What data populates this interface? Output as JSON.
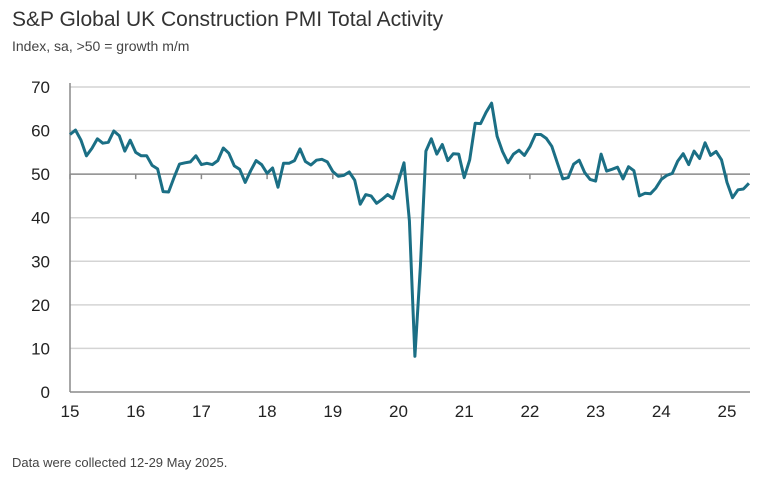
{
  "chart_data": {
    "type": "line",
    "title": "S&P Global UK Construction PMI Total Activity",
    "subtitle": "Index, sa, >50 = growth m/m",
    "footnote": "Data were collected 12-29 May 2025.",
    "xlabel": "",
    "ylabel": "",
    "ylim": [
      0,
      70
    ],
    "yticks": [
      0,
      10,
      20,
      30,
      40,
      50,
      60,
      70
    ],
    "xticks": [
      "15",
      "16",
      "17",
      "18",
      "19",
      "20",
      "21",
      "22",
      "23",
      "24",
      "25"
    ],
    "x_start": "2015-01",
    "x_frequency": "monthly",
    "grid": true,
    "reference_line": 50,
    "line_color": "#1b6f85",
    "series": [
      {
        "values": [
          59.1,
          60.1,
          57.8,
          54.2,
          55.9,
          58.1,
          57.1,
          57.3,
          59.9,
          58.8,
          55.3,
          57.8,
          55.0,
          54.2,
          54.2,
          52.0,
          51.2,
          46.0,
          45.9,
          49.2,
          52.3,
          52.6,
          52.8,
          54.2,
          52.2,
          52.5,
          52.2,
          53.1,
          56.0,
          54.8,
          51.9,
          51.1,
          48.1,
          50.8,
          53.1,
          52.2,
          50.2,
          51.4,
          47.0,
          52.5,
          52.5,
          53.1,
          55.8,
          52.9,
          52.1,
          53.2,
          53.4,
          52.8,
          50.6,
          49.5,
          49.7,
          50.5,
          48.6,
          43.1,
          45.3,
          45.0,
          43.3,
          44.2,
          45.3,
          44.4,
          48.4,
          52.6,
          39.3,
          8.2,
          28.9,
          55.3,
          58.1,
          54.6,
          56.8,
          53.1,
          54.7,
          54.6,
          49.2,
          53.3,
          61.7,
          61.6,
          64.2,
          66.3,
          58.7,
          55.2,
          52.6,
          54.6,
          55.5,
          54.3,
          56.3,
          59.1,
          59.1,
          58.2,
          56.4,
          52.6,
          48.9,
          49.2,
          52.3,
          53.2,
          50.4,
          48.8,
          48.4,
          54.6,
          50.7,
          51.1,
          51.6,
          48.9,
          51.7,
          50.8,
          45.0,
          45.6,
          45.5,
          46.8,
          48.8,
          49.7,
          50.2,
          53.0,
          54.7,
          52.2,
          55.3,
          53.6,
          57.2,
          54.3,
          55.2,
          53.3,
          48.1,
          44.6,
          46.4,
          46.6,
          47.9
        ]
      }
    ]
  }
}
